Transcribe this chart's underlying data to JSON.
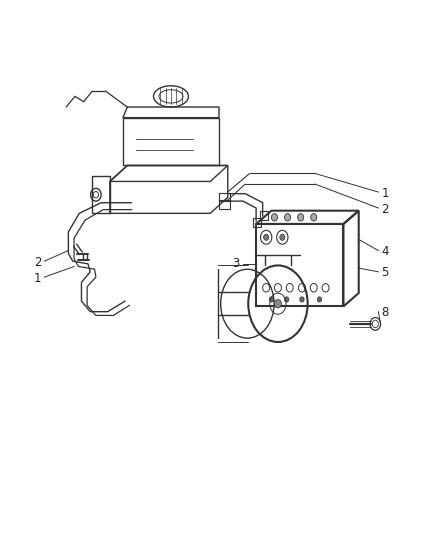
{
  "bg_color": "#ffffff",
  "line_color": "#333333",
  "label_color": "#222222",
  "figsize": [
    4.38,
    5.33
  ],
  "dpi": 100
}
